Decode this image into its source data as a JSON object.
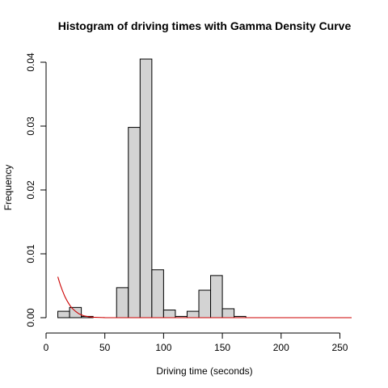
{
  "chart_data": {
    "type": "bar",
    "title": "Histogram of driving times with Gamma Density Curve",
    "xlabel": "Driving time (seconds)",
    "ylabel": "Frequency",
    "xlim": [
      0,
      260
    ],
    "ylim": [
      0,
      0.042
    ],
    "x_ticks": [
      0,
      50,
      100,
      150,
      200,
      250
    ],
    "y_ticks": [
      0.0,
      0.01,
      0.02,
      0.03,
      0.04
    ],
    "y_tick_labels": [
      "0.00",
      "0.01",
      "0.02",
      "0.03",
      "0.04"
    ],
    "grid": false,
    "bins": [
      {
        "start": 10,
        "end": 20,
        "value": 0.001
      },
      {
        "start": 20,
        "end": 30,
        "value": 0.0016
      },
      {
        "start": 30,
        "end": 40,
        "value": 0.0002
      },
      {
        "start": 40,
        "end": 50,
        "value": 0.0
      },
      {
        "start": 50,
        "end": 60,
        "value": 0.0
      },
      {
        "start": 60,
        "end": 70,
        "value": 0.0047
      },
      {
        "start": 70,
        "end": 80,
        "value": 0.0298
      },
      {
        "start": 80,
        "end": 90,
        "value": 0.0405
      },
      {
        "start": 90,
        "end": 100,
        "value": 0.0075
      },
      {
        "start": 100,
        "end": 110,
        "value": 0.0012
      },
      {
        "start": 110,
        "end": 120,
        "value": 0.0002
      },
      {
        "start": 120,
        "end": 130,
        "value": 0.001
      },
      {
        "start": 130,
        "end": 140,
        "value": 0.0043
      },
      {
        "start": 140,
        "end": 150,
        "value": 0.0066
      },
      {
        "start": 150,
        "end": 160,
        "value": 0.0014
      },
      {
        "start": 160,
        "end": 170,
        "value": 0.0002
      }
    ],
    "bar_fill": "#d3d3d3",
    "density_curve": {
      "color": "#cc0000",
      "x": [
        10,
        12,
        14,
        16,
        18,
        20,
        22,
        25,
        28,
        32,
        36,
        40,
        50,
        60,
        80,
        100,
        150,
        200,
        260
      ],
      "y": [
        0.0064,
        0.0052,
        0.0042,
        0.0033,
        0.0026,
        0.002,
        0.0015,
        0.001,
        0.0006,
        0.0003,
        0.00015,
        7e-05,
        1e-05,
        0,
        0,
        0,
        0,
        0,
        0
      ]
    }
  }
}
